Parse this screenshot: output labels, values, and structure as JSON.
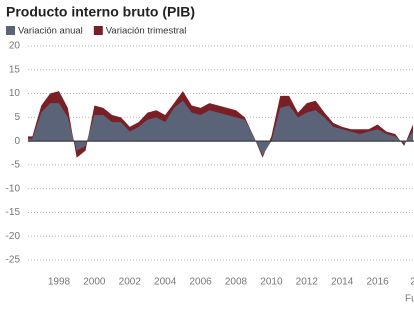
{
  "chart_data": {
    "type": "area",
    "title": "Producto interno bruto (PIB)",
    "source": "Fu",
    "x": [
      1996.25,
      1996.5,
      1997,
      1997.5,
      1998,
      1998.5,
      1999,
      1999.5,
      2000,
      2000.5,
      2001,
      2001.5,
      2002,
      2002.5,
      2003,
      2003.5,
      2004,
      2004.5,
      2005,
      2005.5,
      2006,
      2006.5,
      2007,
      2007.5,
      2008,
      2008.5,
      2009,
      2009.5,
      2010,
      2010.5,
      2011,
      2011.5,
      2012,
      2012.5,
      2013,
      2013.5,
      2014,
      2014.5,
      2015,
      2015.5,
      2016,
      2016.5,
      2017,
      2017.5,
      2018
    ],
    "series": [
      {
        "name": "Variación anual",
        "color": "#5b6378",
        "values": [
          0.5,
          0.5,
          6,
          8,
          8,
          5,
          -2,
          -1,
          5.5,
          5.5,
          4,
          4,
          2,
          3,
          4.5,
          5,
          4,
          7,
          8.5,
          6,
          5.5,
          6.5,
          6,
          5.5,
          5,
          4.5,
          1,
          -3,
          0,
          7,
          7.5,
          5,
          6,
          6.5,
          5,
          3,
          2.5,
          2,
          1.5,
          2,
          2.5,
          1.5,
          1,
          -0.5,
          2
        ]
      },
      {
        "name": "Variación trimestral",
        "color": "#7a1f26",
        "values": [
          0.5,
          0.5,
          1.5,
          2,
          2.5,
          2,
          -1.5,
          -1,
          2,
          1.5,
          1.5,
          1,
          1,
          1,
          1.5,
          1.5,
          1.5,
          1,
          2,
          1.5,
          1.5,
          1.5,
          1.5,
          1.5,
          1.5,
          0.5,
          0,
          -0.5,
          1,
          2.5,
          2,
          1,
          2,
          2,
          1,
          0.8,
          0.5,
          0.5,
          1,
          0.5,
          1,
          0.5,
          0.5,
          -0.5,
          1.5
        ]
      }
    ],
    "stacked": true,
    "xlim": [
      1996.25,
      2018
    ],
    "xticks": [
      1998,
      2000,
      2002,
      2004,
      2006,
      2008,
      2010,
      2012,
      2014,
      2016,
      {
        "value": 2018,
        "label": "2"
      }
    ],
    "ylim": [
      -25,
      20
    ],
    "yticks": [
      -25,
      -20,
      -15,
      -10,
      -5,
      0,
      5,
      10,
      15,
      20
    ],
    "grid": true
  }
}
